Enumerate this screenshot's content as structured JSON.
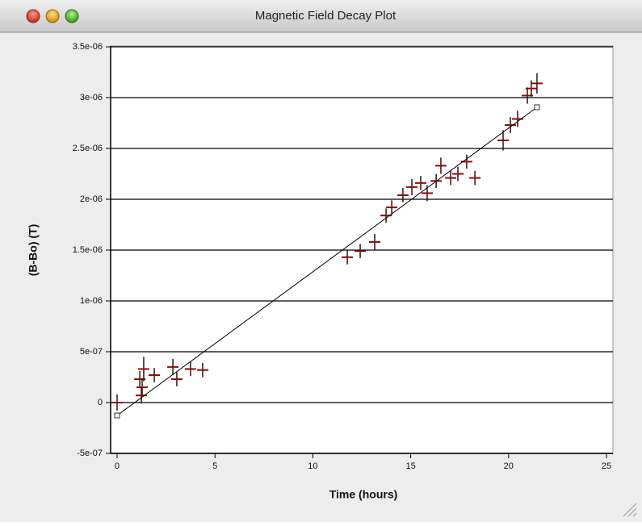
{
  "window_title": "Magnetic Field Decay Plot",
  "chart_data": {
    "type": "scatter",
    "xlabel": "Time (hours)",
    "ylabel": "(B-Bo) (T)",
    "xlim": [
      -0.33,
      25.33
    ],
    "ylim": [
      -5e-07,
      3.5e-06
    ],
    "xticks": [
      0,
      5,
      10,
      15,
      20,
      25
    ],
    "yticks": [
      {
        "value": 3.5e-06,
        "label": "3.5e-06"
      },
      {
        "value": 3e-06,
        "label": "3e-06"
      },
      {
        "value": 2.5e-06,
        "label": "2.5e-06"
      },
      {
        "value": 2e-06,
        "label": "2e-06"
      },
      {
        "value": 1.5e-06,
        "label": "1.5e-06"
      },
      {
        "value": 1e-06,
        "label": "1e-06"
      },
      {
        "value": 5e-07,
        "label": "5e-07"
      },
      0,
      {
        "value": -5e-07,
        "label": "-5e-07"
      }
    ],
    "grid": true,
    "series": [
      {
        "kind": "points",
        "color": "#8b0a0a",
        "x": [
          0,
          1.16,
          1.24,
          1.28,
          1.36,
          1.9,
          2.85,
          3.05,
          3.75,
          4.37,
          11.76,
          12.42,
          13.16,
          13.74,
          14.03,
          14.6,
          15.06,
          15.51,
          15.84,
          16.3,
          16.54,
          17.04,
          17.41,
          17.86,
          18.28,
          19.72,
          20.09,
          20.46,
          20.96,
          21.16,
          21.45
        ],
        "values": [
          0,
          2.3e-07,
          7e-08,
          1.5e-07,
          3.3e-07,
          2.7e-07,
          3.5e-07,
          2.3e-07,
          3.3e-07,
          3.2e-07,
          1.43e-06,
          1.49e-06,
          1.58e-06,
          1.84e-06,
          1.92e-06,
          2.04e-06,
          2.12e-06,
          2.16e-06,
          2.06e-06,
          2.18e-06,
          2.33e-06,
          2.21e-06,
          2.25e-06,
          2.37e-06,
          2.21e-06,
          2.58e-06,
          2.73e-06,
          2.79e-06,
          3.02e-06,
          3.09e-06,
          3.14e-06
        ],
        "errors": [
          8e-08,
          8e-08,
          8e-08,
          8e-08,
          1.2e-07,
          7e-08,
          8e-08,
          7e-08,
          7e-08,
          7e-08,
          7e-08,
          7e-08,
          8e-08,
          7e-08,
          7e-08,
          7e-08,
          8e-08,
          7e-08,
          8e-08,
          7e-08,
          8e-08,
          7e-08,
          7e-08,
          7e-08,
          7e-08,
          1e-07,
          8e-08,
          8e-08,
          8e-08,
          8e-08,
          1e-07
        ]
      },
      {
        "kind": "fit",
        "color": "#000000",
        "x": [
          0,
          21.45
        ],
        "values": [
          -1.27e-07,
          2.905e-06
        ]
      }
    ]
  }
}
